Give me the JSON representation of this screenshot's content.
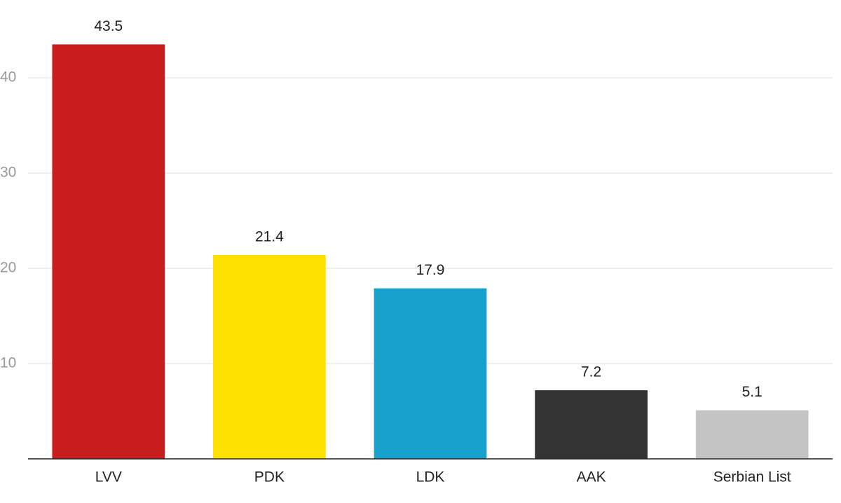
{
  "chart_data": {
    "type": "bar",
    "categories": [
      "LVV",
      "PDK",
      "LDK",
      "AAK",
      "Serbian List"
    ],
    "values": [
      43.5,
      21.4,
      17.9,
      7.2,
      5.1
    ],
    "colors": [
      "#c71e1d",
      "#ffe100",
      "#18a1cd",
      "#333333",
      "#c4c4c4"
    ],
    "ylim": [
      0,
      48
    ],
    "yticks": [
      10,
      20,
      30,
      40
    ],
    "grid": true
  }
}
